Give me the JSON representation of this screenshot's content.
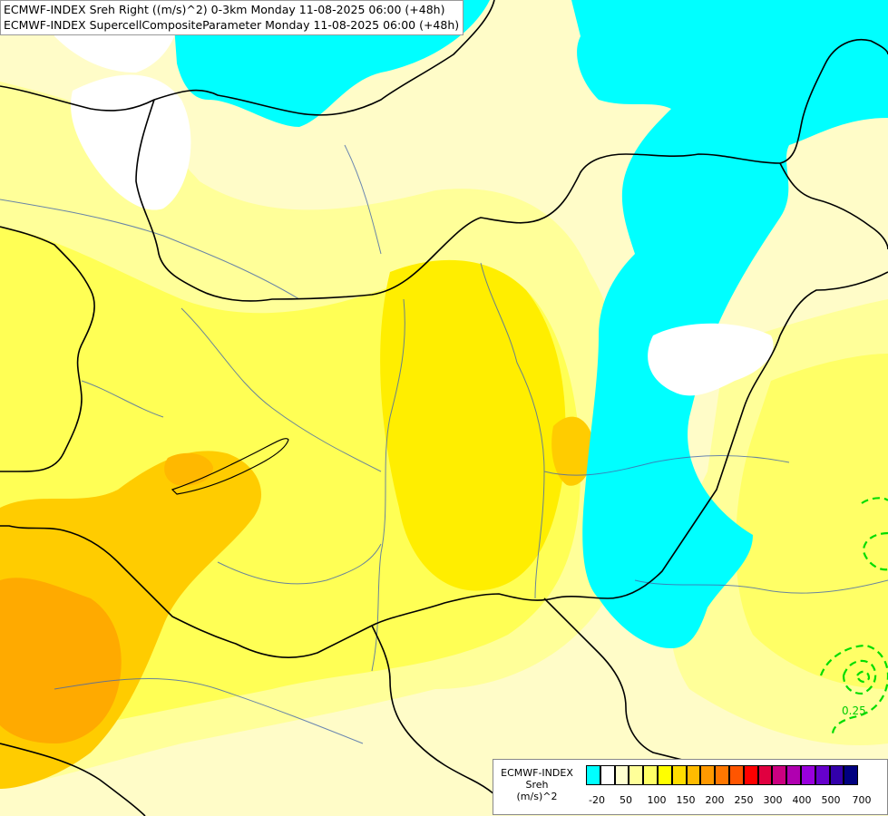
{
  "titles": {
    "line1": "ECMWF-INDEX Sreh Right ((m/s)^2) 0-3km Monday 11-08-2025 06:00 (+48h)",
    "line2": "ECMWF-INDEX SupercellCompositeParameter Monday 11-08-2025 06:00 (+48h)"
  },
  "contour_label": "0.25",
  "legend": {
    "line1": "ECMWF-INDEX",
    "line2": "Sreh",
    "line3": "(m/s)^2",
    "swatch_colors": [
      "#00ffff",
      "#ffffff",
      "#ffffd0",
      "#ffff99",
      "#ffff66",
      "#ffff00",
      "#ffdd00",
      "#ffbb00",
      "#ff9900",
      "#ff7700",
      "#ff5500",
      "#ff0000",
      "#e00040",
      "#cc0080",
      "#b000b0",
      "#9900dd",
      "#6600cc",
      "#3300aa",
      "#000080"
    ],
    "tick_labels": [
      "-20",
      "50",
      "100",
      "150",
      "200",
      "250",
      "300",
      "400",
      "500",
      "700"
    ]
  },
  "colors": {
    "cyan": "#00ffff",
    "white": "#ffffff",
    "pale": "#ffffc8",
    "light_yellow": "#ffff99",
    "yellow": "#ffff44",
    "deep_yellow": "#ffee00",
    "orange": "#ffcc00",
    "dark_orange": "#ffaa00",
    "contour_green": "#00dd00",
    "border": "#000000",
    "river": "#4466aa"
  }
}
